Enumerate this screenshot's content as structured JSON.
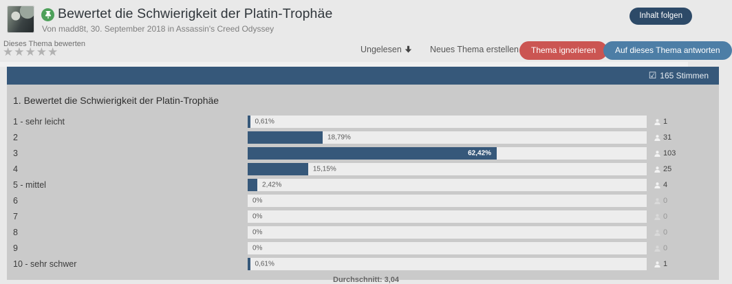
{
  "header": {
    "title": "Bewertet die Schwierigkeit der Platin-Trophäe",
    "byline": "Von madd8t, 30. September 2018 in Assassin's Creed Odyssey",
    "follow_button_label": "Inhalt folgen"
  },
  "toolbar": {
    "rate_topic_label": "Dieses Thema bewerten",
    "star_count": 5,
    "unread_label": "Ungelesen",
    "new_topic_label": "Neues Thema erstellen",
    "ignore_button_label": "Thema ignorieren",
    "reply_button_label": "Auf dieses Thema antworten"
  },
  "poll": {
    "votes_summary": "165 Stimmen",
    "question_title": "1. Bewertet die Schwierigkeit der Platin-Trophäe",
    "average_label": "Durchschnitt: 3,04"
  },
  "chart_data": {
    "type": "bar",
    "orientation": "horizontal",
    "title": "1. Bewertet die Schwierigkeit der Platin-Trophäe",
    "categories": [
      "1 - sehr leicht",
      "2",
      "3",
      "4",
      "5 - mittel",
      "6",
      "7",
      "8",
      "9",
      "10 - sehr schwer"
    ],
    "values_percent": [
      0.61,
      18.79,
      62.42,
      15.15,
      2.42,
      0,
      0,
      0,
      0,
      0.61
    ],
    "percent_labels": [
      "0,61%",
      "18,79%",
      "62,42%",
      "15,15%",
      "2,42%",
      "0%",
      "0%",
      "0%",
      "0%",
      "0,61%"
    ],
    "vote_counts": [
      1,
      31,
      103,
      25,
      4,
      0,
      0,
      0,
      0,
      1
    ],
    "total_votes": 165,
    "average": "3,04",
    "xlim": [
      0,
      100
    ],
    "bar_color": "#36587a"
  },
  "icons": {
    "checkbox": "☑",
    "star": "★"
  },
  "colors": {
    "accent_blue": "#36587a",
    "follow_button": "#2d4a68",
    "ignore_button": "#cb5552",
    "reply_button": "#4d7ea6",
    "panel_body": "#cacaca",
    "bar_track": "#ededed"
  }
}
